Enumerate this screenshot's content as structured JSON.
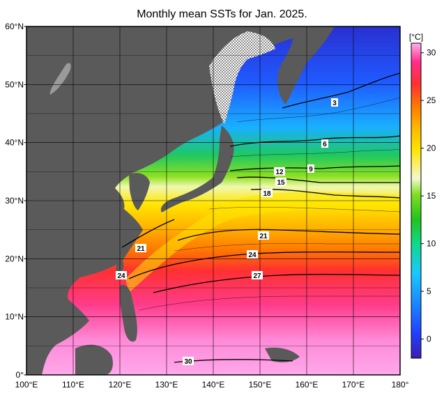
{
  "title": "Monthly mean SSTs for Jan. 2025.",
  "colorbar": {
    "unit": "[°C]",
    "ticks": [
      {
        "value": 30,
        "label": "30"
      },
      {
        "value": 25,
        "label": "25"
      },
      {
        "value": 20,
        "label": "20"
      },
      {
        "value": 15,
        "label": "15"
      },
      {
        "value": 10,
        "label": "10"
      },
      {
        "value": 5,
        "label": "5"
      },
      {
        "value": 0,
        "label": "0"
      }
    ],
    "vmin": -2,
    "vmax": 31,
    "stops": [
      "#3a1fb0",
      "#2040ff",
      "#1a8cff",
      "#19c8ff",
      "#10d890",
      "#22c41c",
      "#7fe020",
      "#d8f040",
      "#ffe600",
      "#ffb000",
      "#ff7a00",
      "#ff3030",
      "#ff2c8c",
      "#ffa0e8"
    ]
  },
  "axes": {
    "lat_labels": [
      "60°N",
      "50°N",
      "40°N",
      "30°N",
      "20°N",
      "10°N",
      "0°"
    ],
    "lon_labels": [
      "100°E",
      "110°E",
      "120°E",
      "130°E",
      "140°E",
      "150°E",
      "160°E",
      "170°E",
      "180°"
    ]
  },
  "contour_labels": [
    "3",
    "6",
    "9",
    "12",
    "15",
    "18",
    "21",
    "21",
    "24",
    "24",
    "27",
    "30"
  ],
  "colors": {
    "land": "#5a5a5a",
    "ice": "#ffffff",
    "grid": "#000000"
  }
}
